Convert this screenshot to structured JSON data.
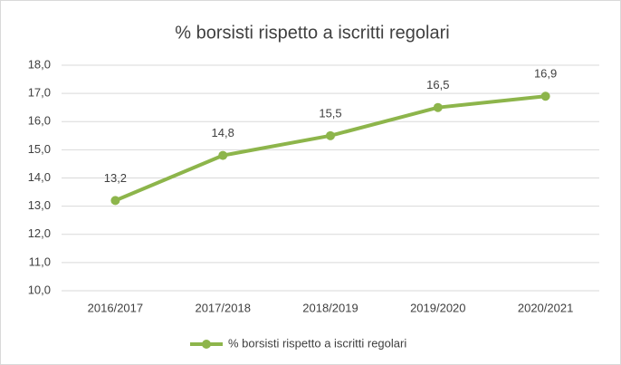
{
  "chart_data": {
    "type": "line",
    "title": "% borsisti rispetto a iscritti regolari",
    "categories": [
      "2016/2017",
      "2017/2018",
      "2018/2019",
      "2019/2020",
      "2020/2021"
    ],
    "series": [
      {
        "name": "% borsisti rispetto a iscritti regolari",
        "color": "#8db54b",
        "values": [
          13.2,
          14.8,
          15.5,
          16.5,
          16.9
        ],
        "value_labels": [
          "13,2",
          "14,8",
          "15,5",
          "16,5",
          "16,9"
        ]
      }
    ],
    "ylim": [
      10,
      18
    ],
    "yticks": [
      {
        "value": 10,
        "label": "10,0"
      },
      {
        "value": 11,
        "label": "11,0"
      },
      {
        "value": 12,
        "label": "12,0"
      },
      {
        "value": 13,
        "label": "13,0"
      },
      {
        "value": 14,
        "label": "14,0"
      },
      {
        "value": 15,
        "label": "15,0"
      },
      {
        "value": 16,
        "label": "16,0"
      },
      {
        "value": 17,
        "label": "17,0"
      },
      {
        "value": 18,
        "label": "18,0"
      }
    ],
    "grid": true,
    "legend": "bottom"
  }
}
